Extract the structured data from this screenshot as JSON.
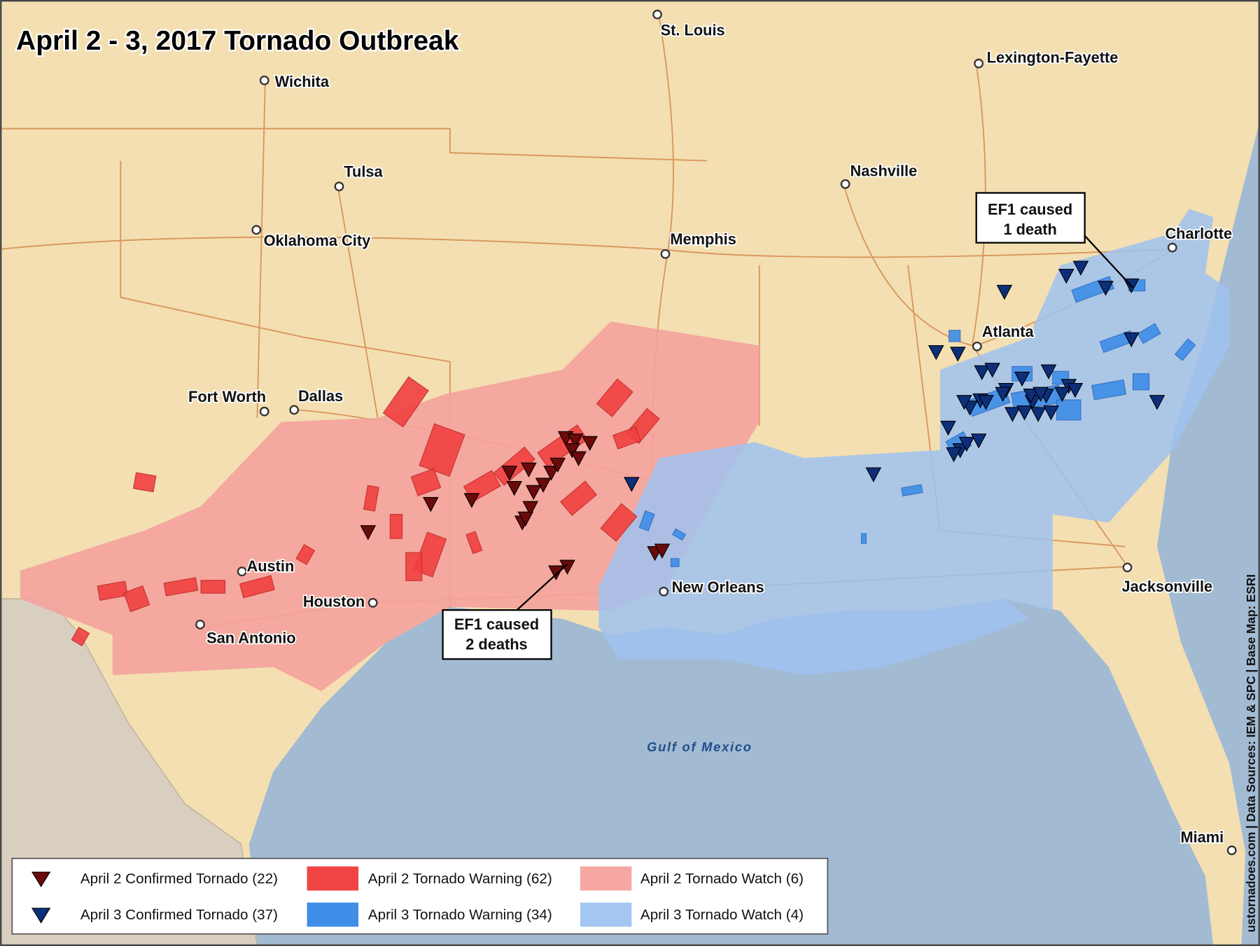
{
  "title": "April 2 - 3, 2017 Tornado Outbreak",
  "cities": [
    {
      "label": "St. Louis"
    },
    {
      "label": "Wichita"
    },
    {
      "label": "Lexington-Fayette"
    },
    {
      "label": "Tulsa"
    },
    {
      "label": "Nashville"
    },
    {
      "label": "Oklahoma City"
    },
    {
      "label": "Memphis"
    },
    {
      "label": "Charlotte"
    },
    {
      "label": "Atlanta"
    },
    {
      "label": "Fort Worth"
    },
    {
      "label": "Dallas"
    },
    {
      "label": "Austin"
    },
    {
      "label": "Houston"
    },
    {
      "label": "San Antonio"
    },
    {
      "label": "New Orleans"
    },
    {
      "label": "Jacksonville"
    },
    {
      "label": "Miami"
    }
  ],
  "water_label": "Gulf of Mexico",
  "annotations": [
    {
      "lines": [
        "EF1 caused",
        "2 deaths"
      ]
    },
    {
      "lines": [
        "EF1 caused",
        "1 death"
      ]
    }
  ],
  "legend": [
    {
      "label": "April 2 Confirmed Tornado (22)"
    },
    {
      "label": "April 2 Tornado Warning (62)"
    },
    {
      "label": "April 2 Tornado Watch (6)"
    },
    {
      "label": "April 3 Confirmed Tornado (37)"
    },
    {
      "label": "April 3 Tornado Warning (34)"
    },
    {
      "label": "April 3 Tornado Watch (4)"
    }
  ],
  "credit": "ustornadoes.com | Data Sources: IEM & SPC | Base Map: ESRI"
}
